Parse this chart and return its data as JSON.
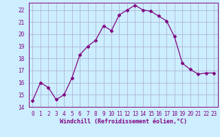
{
  "x": [
    0,
    1,
    2,
    3,
    4,
    5,
    6,
    7,
    8,
    9,
    10,
    11,
    12,
    13,
    14,
    15,
    16,
    17,
    18,
    19,
    20,
    21,
    22,
    23
  ],
  "y": [
    14.5,
    16.0,
    15.6,
    14.6,
    15.0,
    16.4,
    18.3,
    19.0,
    19.5,
    20.7,
    20.3,
    21.6,
    22.0,
    22.4,
    22.0,
    21.9,
    21.5,
    21.1,
    19.8,
    17.6,
    17.1,
    16.7,
    16.8,
    16.8
  ],
  "line_color": "#800080",
  "marker": "D",
  "marker_size": 2.5,
  "bg_color": "#cceeff",
  "grid_color": "#aaaacc",
  "xlabel": "Windchill (Refroidissement éolien,°C)",
  "ylim": [
    14,
    22.6
  ],
  "xlim": [
    -0.5,
    23.5
  ],
  "yticks": [
    14,
    15,
    16,
    17,
    18,
    19,
    20,
    21,
    22
  ],
  "xticks": [
    0,
    1,
    2,
    3,
    4,
    5,
    6,
    7,
    8,
    9,
    10,
    11,
    12,
    13,
    14,
    15,
    16,
    17,
    18,
    19,
    20,
    21,
    22,
    23
  ],
  "tick_color": "#800080",
  "label_color": "#800080",
  "font_family": "monospace",
  "tick_fontsize": 5.5,
  "xlabel_fontsize": 6.0
}
